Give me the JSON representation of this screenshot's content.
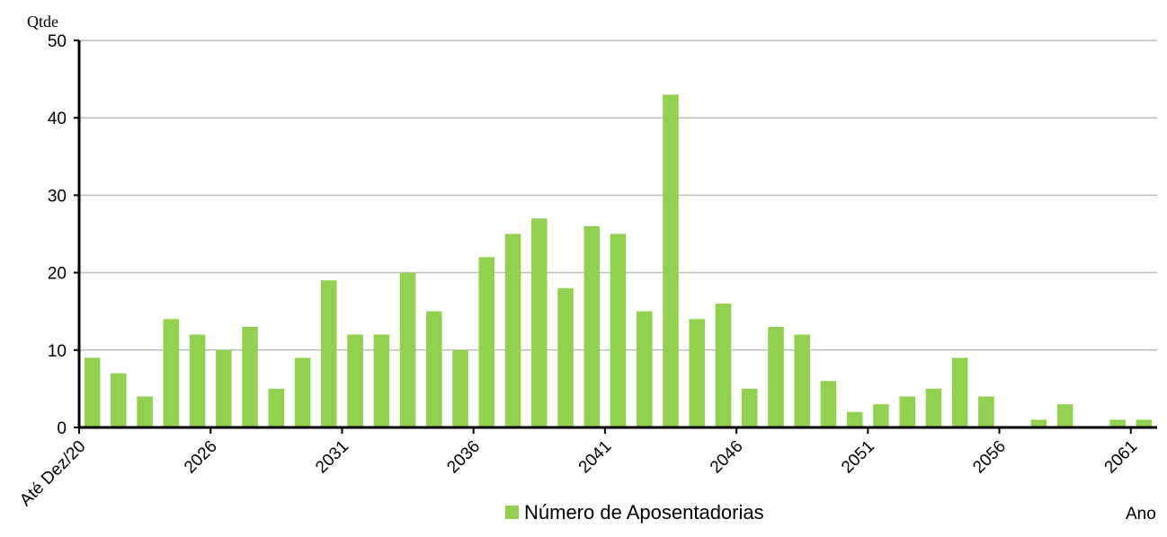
{
  "chart_data": {
    "type": "bar",
    "y_label": "Qtde",
    "x_label": "Ano",
    "categories": [
      "Até Dez/20",
      null,
      null,
      null,
      null,
      "2026",
      null,
      null,
      null,
      null,
      "2031",
      null,
      null,
      null,
      null,
      "2036",
      null,
      null,
      null,
      null,
      "2041",
      null,
      null,
      null,
      null,
      "2046",
      null,
      null,
      null,
      null,
      "2051",
      null,
      null,
      null,
      null,
      "2056",
      null,
      null,
      null,
      null,
      "2061"
    ],
    "series": [
      {
        "name": "Número de Aposentadorias",
        "color": "#92d050",
        "values": [
          9,
          7,
          4,
          14,
          12,
          10,
          13,
          5,
          9,
          19,
          12,
          12,
          20,
          15,
          10,
          22,
          25,
          27,
          18,
          26,
          25,
          15,
          43,
          14,
          16,
          5,
          13,
          12,
          6,
          2,
          3,
          4,
          5,
          9,
          4,
          0,
          1,
          3,
          0,
          1,
          1
        ]
      }
    ],
    "ylim": [
      0,
      50
    ],
    "yticks": [
      0,
      10,
      20,
      30,
      40,
      50
    ],
    "grid": true,
    "legend": "bottom"
  }
}
